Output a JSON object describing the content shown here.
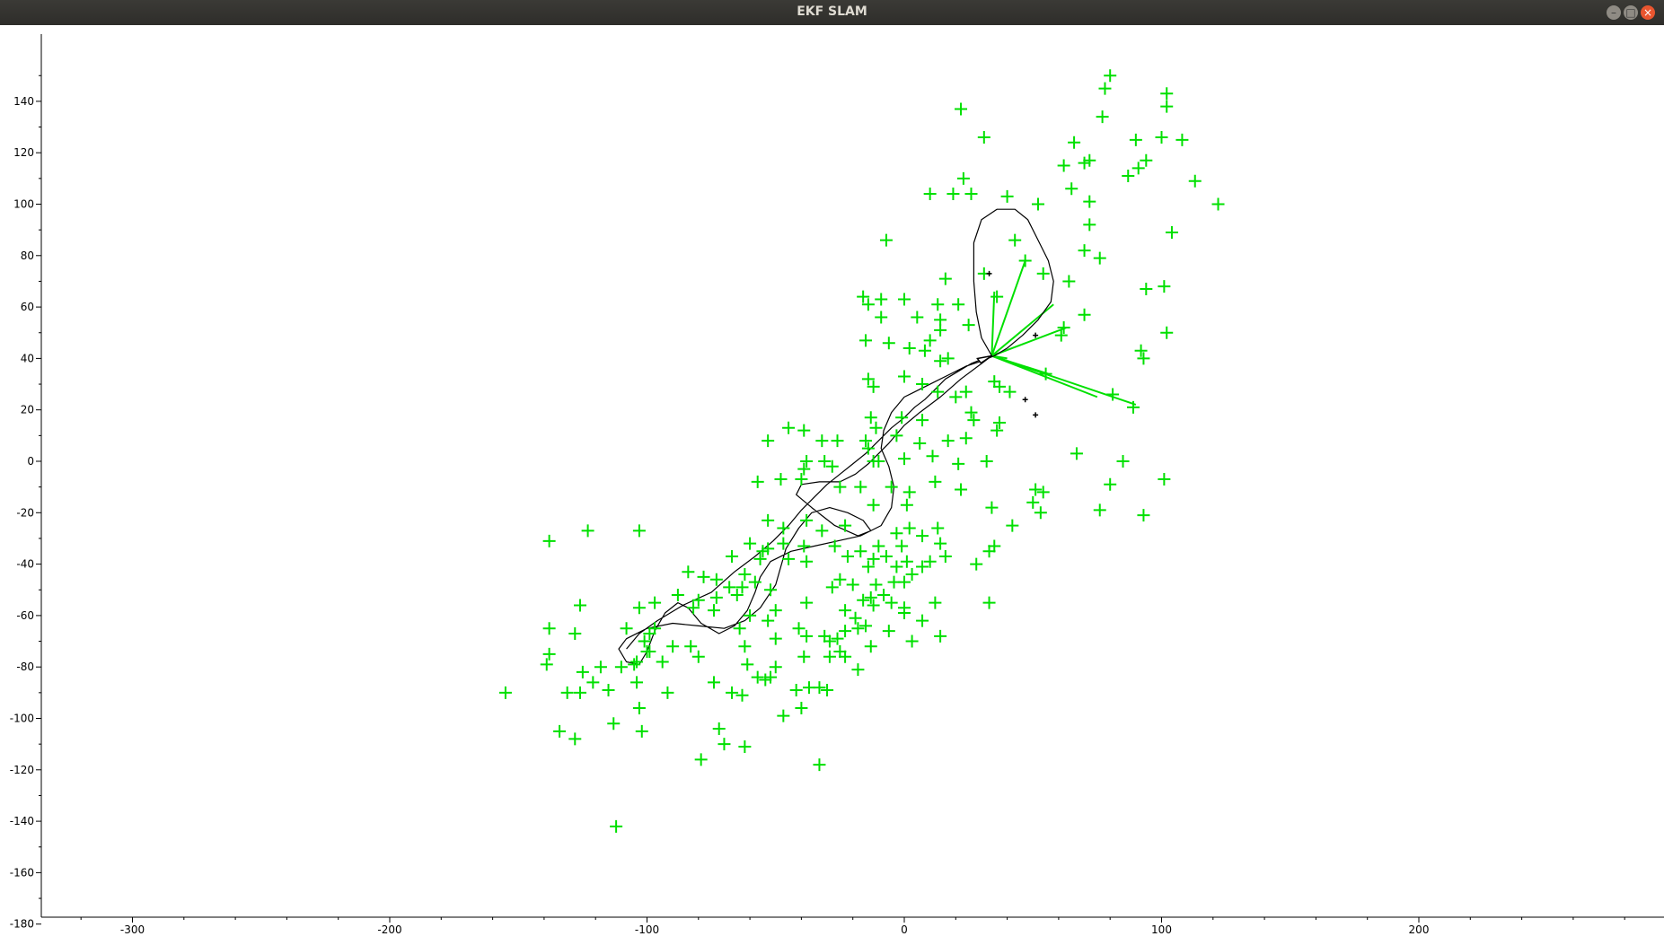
{
  "window": {
    "title": "EKF SLAM",
    "buttons": {
      "minimize_icon": "–",
      "maximize_icon": "□",
      "close_icon": "×"
    }
  },
  "colors": {
    "landmark": "#00e000",
    "observation": "#00e000",
    "trajectory": "#000000",
    "axis": "#000000"
  },
  "chart_data": {
    "type": "scatter",
    "title": "",
    "xlabel": "",
    "ylabel": "",
    "xlim": [
      -335,
      290
    ],
    "ylim": [
      -188,
      153
    ],
    "x_ticks": [
      -300,
      -200,
      -100,
      0,
      100,
      200
    ],
    "y_ticks": [
      140,
      120,
      100,
      80,
      60,
      40,
      20,
      0,
      -20,
      -40,
      -60,
      -80,
      -100,
      -120,
      -140,
      -160,
      -180
    ],
    "landmarks": [
      [
        80,
        150
      ],
      [
        78,
        145
      ],
      [
        102,
        143
      ],
      [
        102,
        138
      ],
      [
        77,
        134
      ],
      [
        22,
        137
      ],
      [
        31,
        126
      ],
      [
        66,
        124
      ],
      [
        90,
        125
      ],
      [
        100,
        126
      ],
      [
        108,
        125
      ],
      [
        62,
        115
      ],
      [
        70,
        116
      ],
      [
        72,
        117
      ],
      [
        94,
        117
      ],
      [
        91,
        114
      ],
      [
        87,
        111
      ],
      [
        23,
        110
      ],
      [
        113,
        109
      ],
      [
        10,
        104
      ],
      [
        19,
        104
      ],
      [
        26,
        104
      ],
      [
        40,
        103
      ],
      [
        65,
        106
      ],
      [
        52,
        100
      ],
      [
        72,
        101
      ],
      [
        122,
        100
      ],
      [
        72,
        92
      ],
      [
        104,
        89
      ],
      [
        -7,
        86
      ],
      [
        43,
        86
      ],
      [
        70,
        82
      ],
      [
        76,
        79
      ],
      [
        47,
        78
      ],
      [
        31,
        73
      ],
      [
        54,
        73
      ],
      [
        16,
        71
      ],
      [
        64,
        70
      ],
      [
        101,
        68
      ],
      [
        94,
        67
      ],
      [
        -16,
        64
      ],
      [
        -14,
        61
      ],
      [
        -9,
        63
      ],
      [
        0,
        63
      ],
      [
        13,
        61
      ],
      [
        21,
        61
      ],
      [
        36,
        64
      ],
      [
        -9,
        56
      ],
      [
        5,
        56
      ],
      [
        14,
        55
      ],
      [
        25,
        53
      ],
      [
        14,
        51
      ],
      [
        -15,
        47
      ],
      [
        -6,
        46
      ],
      [
        2,
        44
      ],
      [
        10,
        47
      ],
      [
        8,
        43
      ],
      [
        62,
        52
      ],
      [
        61,
        49
      ],
      [
        102,
        50
      ],
      [
        70,
        57
      ],
      [
        92,
        43
      ],
      [
        93,
        40
      ],
      [
        -14,
        32
      ],
      [
        -12,
        29
      ],
      [
        0,
        33
      ],
      [
        7,
        30
      ],
      [
        14,
        39
      ],
      [
        17,
        40
      ],
      [
        35,
        31
      ],
      [
        37,
        29
      ],
      [
        41,
        27
      ],
      [
        55,
        34
      ],
      [
        81,
        26
      ],
      [
        89,
        21
      ],
      [
        13,
        27
      ],
      [
        20,
        25
      ],
      [
        24,
        27
      ],
      [
        26,
        19
      ],
      [
        27,
        16
      ],
      [
        -13,
        17
      ],
      [
        -11,
        13
      ],
      [
        -1,
        17
      ],
      [
        7,
        16
      ],
      [
        37,
        15
      ],
      [
        36,
        12
      ],
      [
        -45,
        13
      ],
      [
        -39,
        12
      ],
      [
        -53,
        8
      ],
      [
        -32,
        8
      ],
      [
        -26,
        8
      ],
      [
        -15,
        8
      ],
      [
        -14,
        5
      ],
      [
        -3,
        10
      ],
      [
        6,
        7
      ],
      [
        17,
        8
      ],
      [
        24,
        9
      ],
      [
        -12,
        0
      ],
      [
        -28,
        -2
      ],
      [
        -39,
        -3
      ],
      [
        -38,
        0
      ],
      [
        -31,
        0
      ],
      [
        -10,
        0
      ],
      [
        0,
        1
      ],
      [
        11,
        2
      ],
      [
        21,
        -1
      ],
      [
        32,
        0
      ],
      [
        -57,
        -8
      ],
      [
        -48,
        -7
      ],
      [
        -40,
        -7
      ],
      [
        -25,
        -10
      ],
      [
        -17,
        -10
      ],
      [
        -5,
        -10
      ],
      [
        -12,
        -17
      ],
      [
        1,
        -17
      ],
      [
        2,
        -12
      ],
      [
        12,
        -8
      ],
      [
        22,
        -11
      ],
      [
        42,
        -25
      ],
      [
        51,
        -11
      ],
      [
        54,
        -12
      ],
      [
        50,
        -16
      ],
      [
        53,
        -20
      ],
      [
        34,
        -18
      ],
      [
        67,
        3
      ],
      [
        85,
        0
      ],
      [
        80,
        -9
      ],
      [
        76,
        -19
      ],
      [
        93,
        -21
      ],
      [
        101,
        -7
      ],
      [
        -23,
        -25
      ],
      [
        -32,
        -27
      ],
      [
        -38,
        -23
      ],
      [
        -47,
        -26
      ],
      [
        -53,
        -23
      ],
      [
        -60,
        -32
      ],
      [
        -53,
        -34
      ],
      [
        -47,
        -32
      ],
      [
        -39,
        -33
      ],
      [
        -27,
        -33
      ],
      [
        -17,
        -35
      ],
      [
        -12,
        -38
      ],
      [
        -10,
        -33
      ],
      [
        -7,
        -37
      ],
      [
        -3,
        -28
      ],
      [
        -1,
        -33
      ],
      [
        2,
        -26
      ],
      [
        7,
        -29
      ],
      [
        13,
        -26
      ],
      [
        14,
        -32
      ],
      [
        -67,
        -37
      ],
      [
        -62,
        -44
      ],
      [
        -58,
        -47
      ],
      [
        -56,
        -38
      ],
      [
        -55,
        -35
      ],
      [
        -45,
        -38
      ],
      [
        -38,
        -39
      ],
      [
        -22,
        -37
      ],
      [
        -14,
        -41
      ],
      [
        -3,
        -41
      ],
      [
        1,
        -39
      ],
      [
        3,
        -44
      ],
      [
        7,
        -41
      ],
      [
        10,
        -39
      ],
      [
        16,
        -37
      ],
      [
        28,
        -40
      ],
      [
        -84,
        -43
      ],
      [
        -78,
        -45
      ],
      [
        -73,
        -46
      ],
      [
        -68,
        -49
      ],
      [
        -80,
        -54
      ],
      [
        -73,
        -53
      ],
      [
        -65,
        -52
      ],
      [
        -63,
        -49
      ],
      [
        -52,
        -50
      ],
      [
        -25,
        -46
      ],
      [
        -20,
        -48
      ],
      [
        -28,
        -49
      ],
      [
        -11,
        -48
      ],
      [
        -8,
        -52
      ],
      [
        -13,
        -53
      ],
      [
        -4,
        -47
      ],
      [
        0,
        -47
      ],
      [
        33,
        -35
      ],
      [
        35,
        -33
      ],
      [
        -103,
        -57
      ],
      [
        -97,
        -55
      ],
      [
        -88,
        -52
      ],
      [
        -82,
        -57
      ],
      [
        -108,
        -65
      ],
      [
        -97,
        -65
      ],
      [
        -99,
        -67
      ],
      [
        -74,
        -58
      ],
      [
        -60,
        -60
      ],
      [
        -50,
        -58
      ],
      [
        -53,
        -62
      ],
      [
        -38,
        -55
      ],
      [
        -23,
        -58
      ],
      [
        -19,
        -61
      ],
      [
        -16,
        -54
      ],
      [
        -12,
        -56
      ],
      [
        -5,
        -55
      ],
      [
        0,
        -57
      ],
      [
        0,
        -59
      ],
      [
        7,
        -62
      ],
      [
        12,
        -55
      ],
      [
        33,
        -55
      ],
      [
        -101,
        -70
      ],
      [
        -100,
        -74
      ],
      [
        -90,
        -72
      ],
      [
        -83,
        -72
      ],
      [
        -64,
        -65
      ],
      [
        -62,
        -72
      ],
      [
        -50,
        -69
      ],
      [
        -41,
        -65
      ],
      [
        -38,
        -68
      ],
      [
        -31,
        -68
      ],
      [
        -23,
        -66
      ],
      [
        -26,
        -69
      ],
      [
        -29,
        -70
      ],
      [
        -25,
        -74
      ],
      [
        -18,
        -65
      ],
      [
        -15,
        -64
      ],
      [
        -13,
        -72
      ],
      [
        -6,
        -66
      ],
      [
        3,
        -70
      ],
      [
        14,
        -68
      ],
      [
        -110,
        -80
      ],
      [
        -105,
        -79
      ],
      [
        -94,
        -78
      ],
      [
        -80,
        -76
      ],
      [
        -61,
        -79
      ],
      [
        -57,
        -84
      ],
      [
        -54,
        -85
      ],
      [
        -50,
        -80
      ],
      [
        -39,
        -76
      ],
      [
        -29,
        -76
      ],
      [
        -23,
        -76
      ],
      [
        -18,
        -81
      ],
      [
        -138,
        -65
      ],
      [
        -138,
        -75
      ],
      [
        -139,
        -79
      ],
      [
        -125,
        -82
      ],
      [
        -118,
        -80
      ],
      [
        -121,
        -86
      ],
      [
        -115,
        -89
      ],
      [
        -126,
        -90
      ],
      [
        -131,
        -90
      ],
      [
        -104,
        -86
      ],
      [
        -92,
        -90
      ],
      [
        -74,
        -86
      ],
      [
        -67,
        -90
      ],
      [
        -63,
        -91
      ],
      [
        -52,
        -84
      ],
      [
        -42,
        -89
      ],
      [
        -37,
        -88
      ],
      [
        -33,
        -88
      ],
      [
        -30,
        -89
      ],
      [
        -155,
        -90
      ],
      [
        -134,
        -105
      ],
      [
        -128,
        -108
      ],
      [
        -113,
        -102
      ],
      [
        -103,
        -96
      ],
      [
        -102,
        -105
      ],
      [
        -72,
        -104
      ],
      [
        -70,
        -110
      ],
      [
        -79,
        -116
      ],
      [
        -62,
        -111
      ],
      [
        -47,
        -99
      ],
      [
        -40,
        -96
      ],
      [
        -33,
        -118
      ],
      [
        -112,
        -142
      ],
      [
        -138,
        -31
      ],
      [
        -123,
        -27
      ],
      [
        -103,
        -27
      ],
      [
        -126,
        -56
      ],
      [
        -128,
        -67
      ],
      [
        -99,
        -74
      ],
      [
        -104,
        -78
      ]
    ],
    "robot_pose": [
      34,
      41
    ],
    "observations": [
      [
        47,
        78
      ],
      [
        35,
        66
      ],
      [
        58,
        61
      ],
      [
        63,
        52
      ],
      [
        75,
        25
      ],
      [
        90,
        22
      ],
      [
        56,
        34
      ],
      [
        40,
        40
      ]
    ],
    "trajectory": [
      [
        -108,
        -73
      ],
      [
        -103,
        -67
      ],
      [
        -96,
        -62
      ],
      [
        -86,
        -56
      ],
      [
        -75,
        -51
      ],
      [
        -66,
        -43
      ],
      [
        -58,
        -37
      ],
      [
        -51,
        -31
      ],
      [
        -45,
        -25
      ],
      [
        -40,
        -19
      ],
      [
        -35,
        -14
      ],
      [
        -30,
        -9
      ],
      [
        -25,
        -5
      ],
      [
        -20,
        -1
      ],
      [
        -15,
        3
      ],
      [
        -10,
        8
      ],
      [
        -5,
        13
      ],
      [
        0,
        17
      ],
      [
        4,
        21
      ],
      [
        8,
        24
      ],
      [
        12,
        28
      ],
      [
        16,
        32
      ],
      [
        21,
        35
      ],
      [
        26,
        38
      ],
      [
        31,
        40
      ],
      [
        34,
        41
      ],
      [
        30,
        48
      ],
      [
        28,
        58
      ],
      [
        27,
        70
      ],
      [
        27,
        85
      ],
      [
        30,
        94
      ],
      [
        36,
        98
      ],
      [
        43,
        98
      ],
      [
        48,
        94
      ],
      [
        52,
        86
      ],
      [
        56,
        78
      ],
      [
        58,
        70
      ],
      [
        57,
        62
      ],
      [
        52,
        55
      ],
      [
        46,
        49
      ],
      [
        40,
        44
      ],
      [
        35,
        41
      ],
      [
        30,
        39
      ],
      [
        24,
        37
      ],
      [
        18,
        34
      ],
      [
        12,
        31
      ],
      [
        6,
        28
      ],
      [
        0,
        25
      ],
      [
        -5,
        19
      ],
      [
        -8,
        12
      ],
      [
        -9,
        5
      ],
      [
        -6,
        -2
      ],
      [
        -4,
        -10
      ],
      [
        -5,
        -18
      ],
      [
        -9,
        -25
      ],
      [
        -17,
        -29
      ],
      [
        -26,
        -31
      ],
      [
        -35,
        -33
      ],
      [
        -44,
        -35
      ],
      [
        -52,
        -39
      ],
      [
        -56,
        -45
      ],
      [
        -58,
        -51
      ],
      [
        -61,
        -58
      ],
      [
        -66,
        -64
      ],
      [
        -72,
        -67
      ],
      [
        -79,
        -63
      ],
      [
        -84,
        -57
      ],
      [
        -88,
        -55
      ],
      [
        -93,
        -59
      ],
      [
        -97,
        -66
      ],
      [
        -100,
        -74
      ],
      [
        -103,
        -79
      ],
      [
        -108,
        -78
      ],
      [
        -111,
        -73
      ],
      [
        -108,
        -69
      ],
      [
        -100,
        -65
      ],
      [
        -90,
        -63
      ],
      [
        -80,
        -64
      ],
      [
        -70,
        -65
      ],
      [
        -62,
        -62
      ],
      [
        -56,
        -57
      ],
      [
        -50,
        -48
      ],
      [
        -48,
        -41
      ],
      [
        -46,
        -34
      ],
      [
        -41,
        -26
      ],
      [
        -36,
        -20
      ],
      [
        -29,
        -18
      ],
      [
        -22,
        -20
      ],
      [
        -16,
        -23
      ],
      [
        -13,
        -27
      ],
      [
        -18,
        -29
      ],
      [
        -27,
        -25
      ],
      [
        -36,
        -18
      ],
      [
        -42,
        -13
      ],
      [
        -40,
        -9
      ],
      [
        -33,
        -8
      ],
      [
        -25,
        -8
      ],
      [
        -19,
        -5
      ],
      [
        -14,
        -1
      ],
      [
        -10,
        3
      ],
      [
        -6,
        7
      ],
      [
        0,
        14
      ],
      [
        6,
        19
      ],
      [
        14,
        25
      ],
      [
        22,
        32
      ],
      [
        30,
        38
      ],
      [
        34,
        41
      ]
    ],
    "unknown_marks": [
      [
        33,
        73
      ],
      [
        51,
        49
      ],
      [
        47,
        24
      ],
      [
        51,
        18
      ]
    ]
  }
}
